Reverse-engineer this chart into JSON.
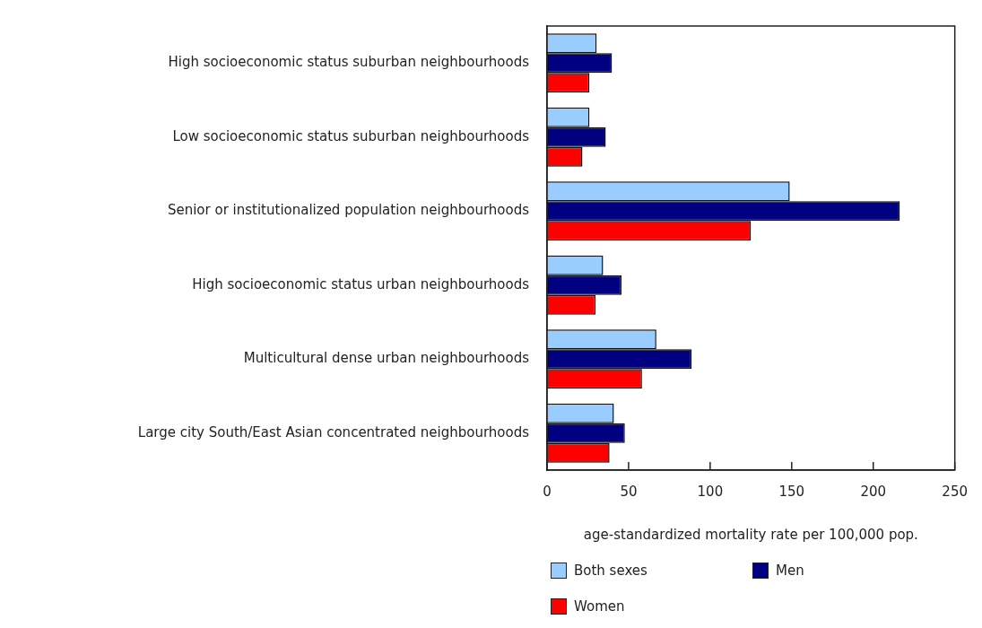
{
  "chart_data": {
    "type": "bar",
    "orientation": "horizontal",
    "categories": [
      "High socioeconomic status suburban neighbourhoods",
      "Low socioeconomic status suburban neighbourhoods",
      "Senior or institutionalized population neighbourhoods",
      "High socioeconomic status urban neighbourhoods",
      "Multicultural dense urban neighbourhoods",
      "Large city South/East Asian concentrated neighbourhoods"
    ],
    "series": [
      {
        "name": "Both sexes",
        "color": "#99ccff",
        "values": [
          30.4,
          26,
          148.8,
          34.4,
          67,
          41
        ]
      },
      {
        "name": "Men",
        "color": "#000080",
        "values": [
          39.8,
          36,
          216.3,
          45.7,
          88.7,
          47.7
        ]
      },
      {
        "name": "Women",
        "color": "#ff0000",
        "values": [
          26,
          21.7,
          125,
          29.8,
          58.2,
          38.3
        ]
      }
    ],
    "xlabel": "age-standardized mortality rate per 100,000 pop.",
    "xlim": [
      0,
      250
    ],
    "xticks": [
      0,
      50,
      100,
      150,
      200,
      250
    ],
    "grid": false,
    "legend": "bottom"
  }
}
